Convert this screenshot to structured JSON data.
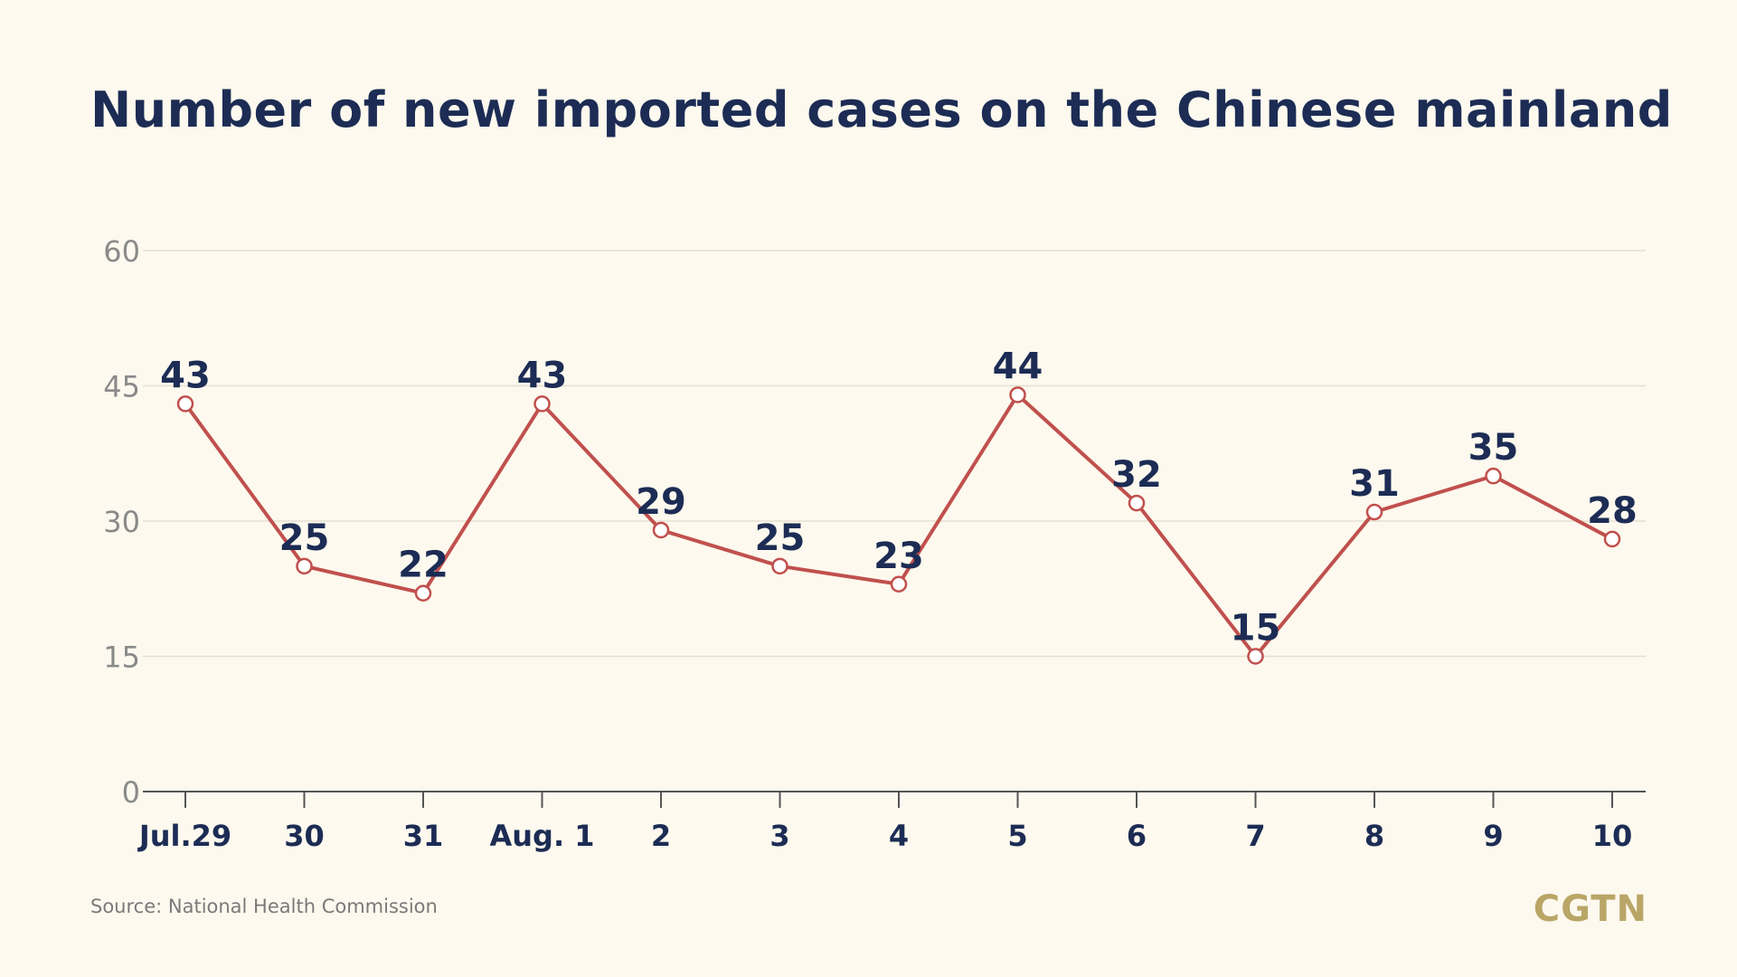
{
  "chart_data": {
    "type": "line",
    "title": "Number of new imported cases on the Chinese mainland",
    "xlabel": "",
    "ylabel": "",
    "categories": [
      "Jul.29",
      "30",
      "31",
      "Aug. 1",
      "2",
      "3",
      "4",
      "5",
      "6",
      "7",
      "8",
      "9",
      "10"
    ],
    "series": [
      {
        "values": [
          43,
          25,
          22,
          43,
          29,
          25,
          23,
          44,
          32,
          15,
          31,
          35,
          28
        ]
      }
    ],
    "ylim": [
      0,
      60
    ],
    "yticks": [
      0,
      15,
      30,
      45,
      60
    ],
    "grid": true,
    "legend": "none",
    "data_labels": true
  },
  "source": "Source: National Health Commission",
  "logo": "CGTN",
  "colors": {
    "background": "#fdf9ee",
    "line": "#c0504d",
    "title": "#1c2c54",
    "labels": "#1c2c54",
    "axis_ticks": "#8a8a8a",
    "grid": "#e4e0d0",
    "logo": "#b9a667"
  }
}
